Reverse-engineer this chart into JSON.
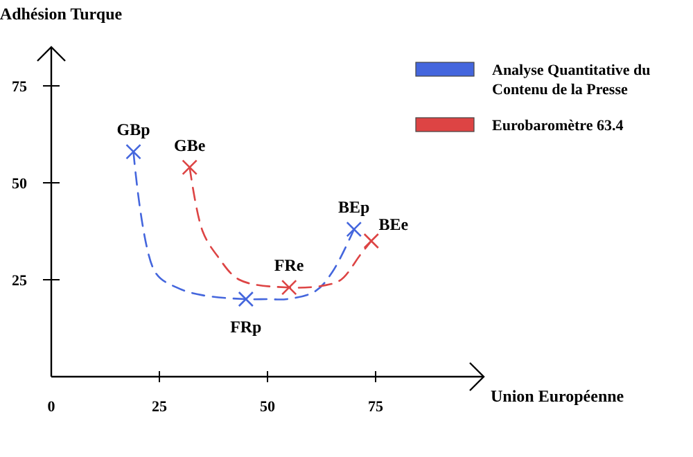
{
  "chart_data": {
    "type": "line",
    "xlabel": "Union Européenne",
    "ylabel": "Adhésion Turque",
    "xlim": [
      0,
      100
    ],
    "ylim": [
      0,
      85
    ],
    "xticks": [
      0,
      25,
      50,
      75
    ],
    "yticks": [
      25,
      50,
      75
    ],
    "grid": false,
    "legend": "top right",
    "line_style": "dashed",
    "marker": "none",
    "series": [
      {
        "name": "Analyse Quantitative du Contenu de la Presse",
        "color": "#4466dd",
        "x": [
          19,
          24,
          29,
          35,
          45,
          50,
          54.5,
          61,
          65,
          70
        ],
        "values": [
          58,
          27,
          23,
          21,
          20,
          20,
          20,
          22,
          27,
          38
        ]
      },
      {
        "name": "Eurobaromètre 63.4",
        "color": "#dd4444",
        "x": [
          32,
          35,
          38.5,
          43.5,
          55,
          63,
          67,
          71.5,
          74
        ],
        "values": [
          54,
          37.5,
          31,
          25,
          23,
          23.5,
          25,
          31.5,
          35
        ]
      },
      {
        "type": "scatter",
        "marker": "cross",
        "color": "#4466dd",
        "x": [
          19,
          45,
          70
        ],
        "values": [
          58,
          20,
          38
        ]
      },
      {
        "type": "scatter",
        "marker": "cross",
        "color": "#dd4444",
        "x": [
          32,
          55,
          74
        ],
        "values": [
          54,
          23,
          35
        ]
      }
    ],
    "annotations": [
      {
        "text": "GBp",
        "x": 19,
        "y": 58
      },
      {
        "text": "GBe",
        "x": 32,
        "y": 54
      },
      {
        "text": "FRp",
        "x": 45,
        "y": 20
      },
      {
        "text": "FRe",
        "x": 55,
        "y": 23
      },
      {
        "text": "BEp",
        "x": 70,
        "y": 38
      },
      {
        "text": "BEe",
        "x": 74,
        "y": 35
      }
    ]
  }
}
